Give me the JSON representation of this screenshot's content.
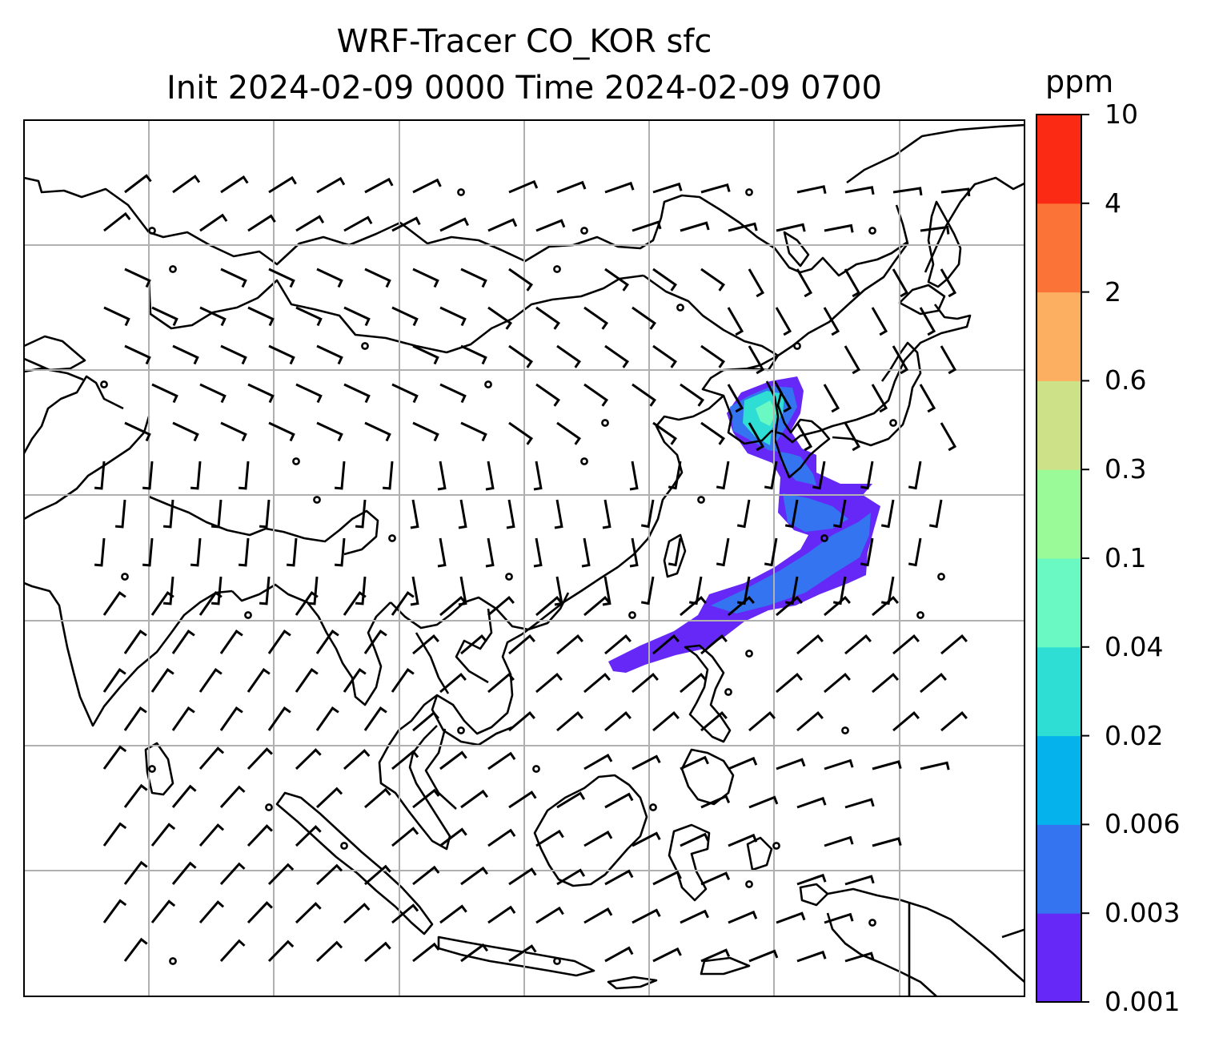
{
  "title": {
    "line1": "WRF-Tracer CO_KOR sfc",
    "line2": "Init 2024-02-09 0000 Time 2024-02-09 0700"
  },
  "colorbar": {
    "unit": "ppm",
    "levels": [
      "0.001",
      "0.003",
      "0.006",
      "0.02",
      "0.04",
      "0.1",
      "0.3",
      "0.6",
      "2",
      "4",
      "10"
    ],
    "colors": [
      "#6528F7",
      "#3474F0",
      "#05B2EC",
      "#2EDDD3",
      "#6AF9C2",
      "#9AFA98",
      "#CDE288",
      "#FCAE61",
      "#FC7337",
      "#FB2A14"
    ]
  },
  "map": {
    "gridlines": true,
    "coastline_color": "#000000",
    "plume_colors": {
      "outer": "#6528F7",
      "mid": "#3474F0",
      "light": "#2EDDD3",
      "inner": "#6AF9C2"
    }
  }
}
